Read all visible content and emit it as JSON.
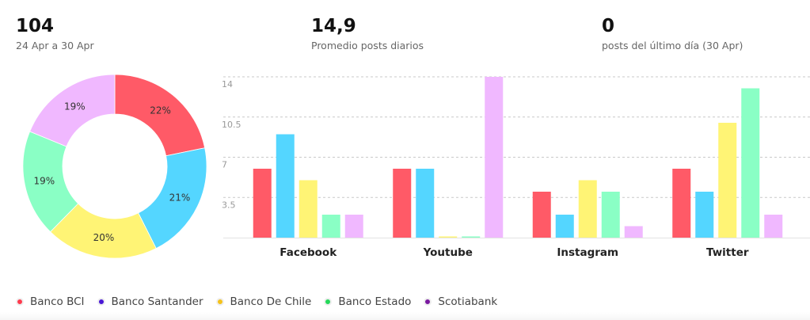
{
  "stats": [
    {
      "value": "104",
      "label": "24 Apr a 30 Apr"
    },
    {
      "value": "14,9",
      "label": "Promedio posts diarios"
    },
    {
      "value": "0",
      "label": "posts del último día (30 Apr)"
    }
  ],
  "colors": {
    "Banco BCI": "#ff5a67",
    "Banco Santander": "#54d6ff",
    "Banco De Chile": "#fff475",
    "Banco Estado": "#8affc5",
    "Scotiabank": "#f0b8ff"
  },
  "legend": [
    {
      "name": "Banco BCI",
      "dot": "#ff3b4e"
    },
    {
      "name": "Banco Santander",
      "dot": "#4a18d6"
    },
    {
      "name": "Banco De Chile",
      "dot": "#f5c21b"
    },
    {
      "name": "Banco Estado",
      "dot": "#25d95a"
    },
    {
      "name": "Scotiabank",
      "dot": "#7a1aa0"
    }
  ],
  "chart_data": [
    {
      "type": "pie",
      "style": "donut",
      "labels": [
        "Banco BCI",
        "Banco Santander",
        "Banco De Chile",
        "Banco Estado",
        "Scotiabank"
      ],
      "values": [
        22,
        21,
        20,
        19,
        19
      ],
      "value_labels": [
        "22%",
        "21%",
        "20%",
        "19%",
        "19%"
      ]
    },
    {
      "type": "bar",
      "categories": [
        "Facebook",
        "Youtube",
        "Instagram",
        "Twitter"
      ],
      "series": [
        {
          "name": "Banco BCI",
          "values": [
            6,
            6,
            4,
            6
          ]
        },
        {
          "name": "Banco Santander",
          "values": [
            9,
            6,
            2,
            4
          ]
        },
        {
          "name": "Banco De Chile",
          "values": [
            5,
            0,
            5,
            10
          ]
        },
        {
          "name": "Banco Estado",
          "values": [
            2,
            0,
            4,
            13
          ]
        },
        {
          "name": "Scotiabank",
          "values": [
            2,
            14,
            1,
            2
          ]
        }
      ],
      "yticks": [
        "14",
        "10.5",
        "7",
        "3.5"
      ],
      "ylim": [
        0,
        14
      ],
      "grid": true,
      "legend": "bottom"
    }
  ]
}
